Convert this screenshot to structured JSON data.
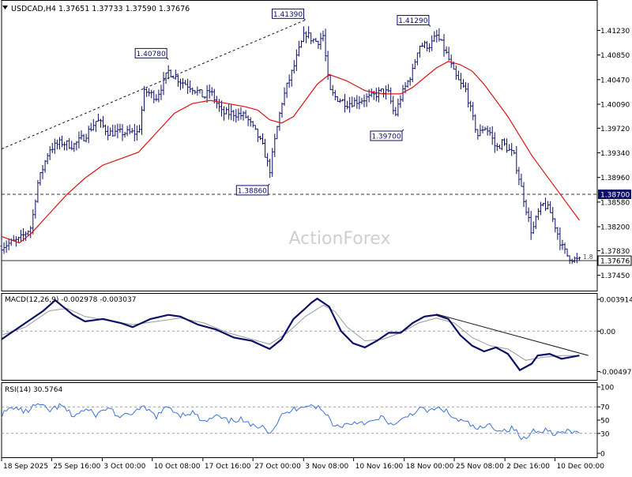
{
  "header": {
    "symbol_line": "USDCAD,H4  1.37651 1.37733 1.37590 1.37676",
    "watermark": "ActionForex"
  },
  "colors": {
    "candle": "#0b0f66",
    "ma": "#dd1111",
    "macd_main": "#0b0f66",
    "macd_signal": "#9a9a9a",
    "rsi": "#3b72d8",
    "trendline": "#111111",
    "hline": "#333333",
    "label_border": "#0b0f66",
    "level_tag_bg": "#0b0f66",
    "level_tag_text": "#ffffff",
    "grid_level": "#9a9a9a"
  },
  "chart_data": [
    {
      "type": "candlestick",
      "name": "price-panel",
      "ylim": [
        1.3725,
        1.4165
      ],
      "y_ticks": [
        "1.41230",
        "1.40850",
        "1.40470",
        "1.40090",
        "1.39720",
        "1.39340",
        "1.38960",
        "1.38580",
        "1.38200",
        "1.37830",
        "1.37450"
      ],
      "current_price": "1.37676",
      "level_tags": [
        {
          "label": "1.38700",
          "value": 1.387
        }
      ],
      "price_labels": [
        {
          "text": "1.41390",
          "t": 0.51,
          "value": 1.4139
        },
        {
          "text": "1.41290",
          "t": 0.72,
          "value": 1.4129
        },
        {
          "text": "1.40780",
          "t": 0.28,
          "value": 1.4078
        },
        {
          "text": "1.39700",
          "t": 0.675,
          "value": 1.397
        },
        {
          "text": "1.38860",
          "t": 0.45,
          "value": 1.3886
        }
      ],
      "horizontal_lines": [
        {
          "value": 1.387,
          "style": "dashed"
        },
        {
          "value": 1.37676,
          "style": "solid"
        }
      ],
      "trendline": {
        "t": [
          0.0,
          0.51
        ],
        "y": [
          1.394,
          1.4139
        ]
      },
      "hline_label": "1.8",
      "price_path": [
        {
          "t": 0.0,
          "y": 1.379
        },
        {
          "t": 0.03,
          "y": 1.38
        },
        {
          "t": 0.05,
          "y": 1.382
        },
        {
          "t": 0.06,
          "y": 1.3885
        },
        {
          "t": 0.08,
          "y": 1.394
        },
        {
          "t": 0.1,
          "y": 1.395
        },
        {
          "t": 0.12,
          "y": 1.3945
        },
        {
          "t": 0.14,
          "y": 1.396
        },
        {
          "t": 0.16,
          "y": 1.3985
        },
        {
          "t": 0.18,
          "y": 1.3965
        },
        {
          "t": 0.2,
          "y": 1.3965
        },
        {
          "t": 0.23,
          "y": 1.3965
        },
        {
          "t": 0.24,
          "y": 1.403
        },
        {
          "t": 0.26,
          "y": 1.402
        },
        {
          "t": 0.28,
          "y": 1.406
        },
        {
          "t": 0.3,
          "y": 1.4045
        },
        {
          "t": 0.32,
          "y": 1.4035
        },
        {
          "t": 0.34,
          "y": 1.402
        },
        {
          "t": 0.35,
          "y": 1.403
        },
        {
          "t": 0.37,
          "y": 1.3995
        },
        {
          "t": 0.39,
          "y": 1.3995
        },
        {
          "t": 0.41,
          "y": 1.399
        },
        {
          "t": 0.43,
          "y": 1.396
        },
        {
          "t": 0.44,
          "y": 1.394
        },
        {
          "t": 0.45,
          "y": 1.3905
        },
        {
          "t": 0.46,
          "y": 1.396
        },
        {
          "t": 0.47,
          "y": 1.401
        },
        {
          "t": 0.48,
          "y": 1.404
        },
        {
          "t": 0.49,
          "y": 1.4065
        },
        {
          "t": 0.5,
          "y": 1.4095
        },
        {
          "t": 0.51,
          "y": 1.412
        },
        {
          "t": 0.52,
          "y": 1.411
        },
        {
          "t": 0.53,
          "y": 1.4105
        },
        {
          "t": 0.54,
          "y": 1.4115
        },
        {
          "t": 0.55,
          "y": 1.403
        },
        {
          "t": 0.56,
          "y": 1.402
        },
        {
          "t": 0.58,
          "y": 1.401
        },
        {
          "t": 0.6,
          "y": 1.4015
        },
        {
          "t": 0.62,
          "y": 1.402
        },
        {
          "t": 0.64,
          "y": 1.403
        },
        {
          "t": 0.65,
          "y": 1.4025
        },
        {
          "t": 0.66,
          "y": 1.399
        },
        {
          "t": 0.67,
          "y": 1.402
        },
        {
          "t": 0.68,
          "y": 1.404
        },
        {
          "t": 0.69,
          "y": 1.406
        },
        {
          "t": 0.7,
          "y": 1.41
        },
        {
          "t": 0.72,
          "y": 1.41
        },
        {
          "t": 0.73,
          "y": 1.4115
        },
        {
          "t": 0.74,
          "y": 1.41
        },
        {
          "t": 0.75,
          "y": 1.408
        },
        {
          "t": 0.76,
          "y": 1.4055
        },
        {
          "t": 0.77,
          "y": 1.404
        },
        {
          "t": 0.78,
          "y": 1.403
        },
        {
          "t": 0.79,
          "y": 1.399
        },
        {
          "t": 0.8,
          "y": 1.396
        },
        {
          "t": 0.81,
          "y": 1.3975
        },
        {
          "t": 0.82,
          "y": 1.3965
        },
        {
          "t": 0.83,
          "y": 1.394
        },
        {
          "t": 0.84,
          "y": 1.395
        },
        {
          "t": 0.85,
          "y": 1.394
        },
        {
          "t": 0.86,
          "y": 1.393
        },
        {
          "t": 0.87,
          "y": 1.389
        },
        {
          "t": 0.88,
          "y": 1.385
        },
        {
          "t": 0.89,
          "y": 1.381
        },
        {
          "t": 0.9,
          "y": 1.384
        },
        {
          "t": 0.91,
          "y": 1.3855
        },
        {
          "t": 0.92,
          "y": 1.3845
        },
        {
          "t": 0.93,
          "y": 1.382
        },
        {
          "t": 0.94,
          "y": 1.379
        },
        {
          "t": 0.95,
          "y": 1.3775
        },
        {
          "t": 0.96,
          "y": 1.377
        },
        {
          "t": 0.97,
          "y": 1.37676
        }
      ],
      "ma_path": [
        {
          "t": 0.0,
          "y": 1.3805
        },
        {
          "t": 0.03,
          "y": 1.3795
        },
        {
          "t": 0.05,
          "y": 1.381
        },
        {
          "t": 0.08,
          "y": 1.384
        },
        {
          "t": 0.11,
          "y": 1.387
        },
        {
          "t": 0.14,
          "y": 1.3895
        },
        {
          "t": 0.17,
          "y": 1.3915
        },
        {
          "t": 0.2,
          "y": 1.3925
        },
        {
          "t": 0.23,
          "y": 1.3935
        },
        {
          "t": 0.26,
          "y": 1.3965
        },
        {
          "t": 0.29,
          "y": 1.3995
        },
        {
          "t": 0.32,
          "y": 1.401
        },
        {
          "t": 0.35,
          "y": 1.4015
        },
        {
          "t": 0.38,
          "y": 1.401
        },
        {
          "t": 0.41,
          "y": 1.4005
        },
        {
          "t": 0.43,
          "y": 1.4
        },
        {
          "t": 0.45,
          "y": 1.3985
        },
        {
          "t": 0.47,
          "y": 1.398
        },
        {
          "t": 0.49,
          "y": 1.399
        },
        {
          "t": 0.51,
          "y": 1.4015
        },
        {
          "t": 0.53,
          "y": 1.404
        },
        {
          "t": 0.55,
          "y": 1.4055
        },
        {
          "t": 0.58,
          "y": 1.4045
        },
        {
          "t": 0.61,
          "y": 1.403
        },
        {
          "t": 0.64,
          "y": 1.4025
        },
        {
          "t": 0.67,
          "y": 1.4025
        },
        {
          "t": 0.69,
          "y": 1.4035
        },
        {
          "t": 0.71,
          "y": 1.405
        },
        {
          "t": 0.73,
          "y": 1.4065
        },
        {
          "t": 0.75,
          "y": 1.4075
        },
        {
          "t": 0.77,
          "y": 1.407
        },
        {
          "t": 0.79,
          "y": 1.406
        },
        {
          "t": 0.81,
          "y": 1.404
        },
        {
          "t": 0.83,
          "y": 1.4015
        },
        {
          "t": 0.85,
          "y": 1.399
        },
        {
          "t": 0.87,
          "y": 1.396
        },
        {
          "t": 0.89,
          "y": 1.393
        },
        {
          "t": 0.91,
          "y": 1.3905
        },
        {
          "t": 0.93,
          "y": 1.388
        },
        {
          "t": 0.95,
          "y": 1.3855
        },
        {
          "t": 0.97,
          "y": 1.383
        }
      ]
    },
    {
      "type": "line",
      "name": "macd-panel",
      "title": "MACD(12,26,9) -0.002978 -0.003037",
      "ylim": [
        -0.0059,
        0.0045
      ],
      "y_ticks": [
        {
          "label": "0.003914",
          "value": 0.003914
        },
        {
          "label": "0.00",
          "value": 0.0
        },
        {
          "label": "-0.00497",
          "value": -0.00497
        }
      ],
      "main_line": [
        {
          "t": 0.0,
          "y": -0.001
        },
        {
          "t": 0.04,
          "y": 0.001
        },
        {
          "t": 0.07,
          "y": 0.0025
        },
        {
          "t": 0.09,
          "y": 0.0038
        },
        {
          "t": 0.12,
          "y": 0.002
        },
        {
          "t": 0.14,
          "y": 0.0012
        },
        {
          "t": 0.17,
          "y": 0.0015
        },
        {
          "t": 0.2,
          "y": 0.001
        },
        {
          "t": 0.22,
          "y": 0.0005
        },
        {
          "t": 0.25,
          "y": 0.0015
        },
        {
          "t": 0.28,
          "y": 0.002
        },
        {
          "t": 0.3,
          "y": 0.0018
        },
        {
          "t": 0.33,
          "y": 0.0008
        },
        {
          "t": 0.36,
          "y": 0.0002
        },
        {
          "t": 0.39,
          "y": -0.0008
        },
        {
          "t": 0.42,
          "y": -0.0012
        },
        {
          "t": 0.45,
          "y": -0.0022
        },
        {
          "t": 0.47,
          "y": -0.001
        },
        {
          "t": 0.49,
          "y": 0.0015
        },
        {
          "t": 0.51,
          "y": 0.0028
        },
        {
          "t": 0.52,
          "y": 0.0035
        },
        {
          "t": 0.53,
          "y": 0.004
        },
        {
          "t": 0.55,
          "y": 0.003
        },
        {
          "t": 0.57,
          "y": 0.0
        },
        {
          "t": 0.59,
          "y": -0.0015
        },
        {
          "t": 0.61,
          "y": -0.002
        },
        {
          "t": 0.63,
          "y": -0.0012
        },
        {
          "t": 0.65,
          "y": -0.0002
        },
        {
          "t": 0.67,
          "y": -0.0002
        },
        {
          "t": 0.69,
          "y": 0.001
        },
        {
          "t": 0.71,
          "y": 0.0018
        },
        {
          "t": 0.73,
          "y": 0.002
        },
        {
          "t": 0.75,
          "y": 0.0015
        },
        {
          "t": 0.77,
          "y": -0.0005
        },
        {
          "t": 0.79,
          "y": -0.0018
        },
        {
          "t": 0.81,
          "y": -0.0025
        },
        {
          "t": 0.83,
          "y": -0.002
        },
        {
          "t": 0.85,
          "y": -0.0028
        },
        {
          "t": 0.87,
          "y": -0.0048
        },
        {
          "t": 0.89,
          "y": -0.004
        },
        {
          "t": 0.9,
          "y": -0.003
        },
        {
          "t": 0.92,
          "y": -0.0028
        },
        {
          "t": 0.94,
          "y": -0.0034
        },
        {
          "t": 0.97,
          "y": -0.003
        }
      ],
      "signal_line": [
        {
          "t": 0.0,
          "y": -0.0005
        },
        {
          "t": 0.04,
          "y": 0.0005
        },
        {
          "t": 0.08,
          "y": 0.0025
        },
        {
          "t": 0.11,
          "y": 0.0028
        },
        {
          "t": 0.14,
          "y": 0.0018
        },
        {
          "t": 0.18,
          "y": 0.0013
        },
        {
          "t": 0.22,
          "y": 0.0008
        },
        {
          "t": 0.26,
          "y": 0.0012
        },
        {
          "t": 0.3,
          "y": 0.0016
        },
        {
          "t": 0.34,
          "y": 0.001
        },
        {
          "t": 0.38,
          "y": -0.0002
        },
        {
          "t": 0.42,
          "y": -0.001
        },
        {
          "t": 0.45,
          "y": -0.0016
        },
        {
          "t": 0.48,
          "y": -0.0002
        },
        {
          "t": 0.51,
          "y": 0.0018
        },
        {
          "t": 0.54,
          "y": 0.0032
        },
        {
          "t": 0.56,
          "y": 0.0024
        },
        {
          "t": 0.58,
          "y": 0.0005
        },
        {
          "t": 0.61,
          "y": -0.0012
        },
        {
          "t": 0.64,
          "y": -0.001
        },
        {
          "t": 0.67,
          "y": -0.0002
        },
        {
          "t": 0.7,
          "y": 0.001
        },
        {
          "t": 0.73,
          "y": 0.0016
        },
        {
          "t": 0.76,
          "y": 0.001
        },
        {
          "t": 0.79,
          "y": -0.0008
        },
        {
          "t": 0.82,
          "y": -0.0018
        },
        {
          "t": 0.85,
          "y": -0.0022
        },
        {
          "t": 0.88,
          "y": -0.0036
        },
        {
          "t": 0.91,
          "y": -0.0032
        },
        {
          "t": 0.94,
          "y": -0.003
        },
        {
          "t": 0.97,
          "y": -0.003
        }
      ],
      "trendline": {
        "t": [
          0.73,
          0.985
        ],
        "y": [
          0.0021,
          -0.003
        ]
      }
    },
    {
      "type": "line",
      "name": "rsi-panel",
      "title": "RSI(14) 30.5764",
      "ylim": [
        0,
        100
      ],
      "y_ticks": [
        {
          "label": "100",
          "value": 100
        },
        {
          "label": "70",
          "value": 70
        },
        {
          "label": "50",
          "value": 50
        },
        {
          "label": "30",
          "value": 30
        },
        {
          "label": "0",
          "value": 0
        }
      ],
      "series": [
        {
          "values": [
            {
              "t": 0.0,
              "y": 58
            },
            {
              "t": 0.02,
              "y": 70
            },
            {
              "t": 0.04,
              "y": 62
            },
            {
              "t": 0.06,
              "y": 74
            },
            {
              "t": 0.08,
              "y": 64
            },
            {
              "t": 0.1,
              "y": 72
            },
            {
              "t": 0.12,
              "y": 56
            },
            {
              "t": 0.14,
              "y": 66
            },
            {
              "t": 0.16,
              "y": 58
            },
            {
              "t": 0.18,
              "y": 70
            },
            {
              "t": 0.2,
              "y": 52
            },
            {
              "t": 0.22,
              "y": 62
            },
            {
              "t": 0.24,
              "y": 68
            },
            {
              "t": 0.26,
              "y": 56
            },
            {
              "t": 0.28,
              "y": 70
            },
            {
              "t": 0.3,
              "y": 58
            },
            {
              "t": 0.32,
              "y": 62
            },
            {
              "t": 0.34,
              "y": 46
            },
            {
              "t": 0.36,
              "y": 56
            },
            {
              "t": 0.38,
              "y": 48
            },
            {
              "t": 0.4,
              "y": 52
            },
            {
              "t": 0.42,
              "y": 40
            },
            {
              "t": 0.44,
              "y": 44
            },
            {
              "t": 0.45,
              "y": 30
            },
            {
              "t": 0.47,
              "y": 56
            },
            {
              "t": 0.49,
              "y": 66
            },
            {
              "t": 0.51,
              "y": 74
            },
            {
              "t": 0.53,
              "y": 70
            },
            {
              "t": 0.55,
              "y": 54
            },
            {
              "t": 0.56,
              "y": 40
            },
            {
              "t": 0.58,
              "y": 44
            },
            {
              "t": 0.6,
              "y": 48
            },
            {
              "t": 0.62,
              "y": 46
            },
            {
              "t": 0.64,
              "y": 54
            },
            {
              "t": 0.66,
              "y": 40
            },
            {
              "t": 0.68,
              "y": 56
            },
            {
              "t": 0.7,
              "y": 66
            },
            {
              "t": 0.72,
              "y": 64
            },
            {
              "t": 0.74,
              "y": 68
            },
            {
              "t": 0.76,
              "y": 52
            },
            {
              "t": 0.78,
              "y": 46
            },
            {
              "t": 0.8,
              "y": 36
            },
            {
              "t": 0.82,
              "y": 42
            },
            {
              "t": 0.84,
              "y": 34
            },
            {
              "t": 0.86,
              "y": 38
            },
            {
              "t": 0.87,
              "y": 24
            },
            {
              "t": 0.88,
              "y": 20
            },
            {
              "t": 0.89,
              "y": 34
            },
            {
              "t": 0.91,
              "y": 36
            },
            {
              "t": 0.93,
              "y": 30
            },
            {
              "t": 0.95,
              "y": 32
            },
            {
              "t": 0.97,
              "y": 30.5764
            }
          ]
        }
      ]
    }
  ],
  "x_axis": {
    "labels": [
      {
        "text": "18 Sep 2025",
        "t": 0.0
      },
      {
        "text": "25 Sep 16:00",
        "t": 0.084
      },
      {
        "text": "3 Oct 00:00",
        "t": 0.169
      },
      {
        "text": "10 Oct 08:00",
        "t": 0.253
      },
      {
        "text": "17 Oct 16:00",
        "t": 0.338
      },
      {
        "text": "27 Oct 00:00",
        "t": 0.422
      },
      {
        "text": "3 Nov 08:00",
        "t": 0.507
      },
      {
        "text": "10 Nov 16:00",
        "t": 0.591
      },
      {
        "text": "18 Nov 00:00",
        "t": 0.676
      },
      {
        "text": "25 Nov 08:00",
        "t": 0.76
      },
      {
        "text": "2 Dec 16:00",
        "t": 0.845
      },
      {
        "text": "10 Dec 00:00",
        "t": 0.929
      }
    ]
  }
}
